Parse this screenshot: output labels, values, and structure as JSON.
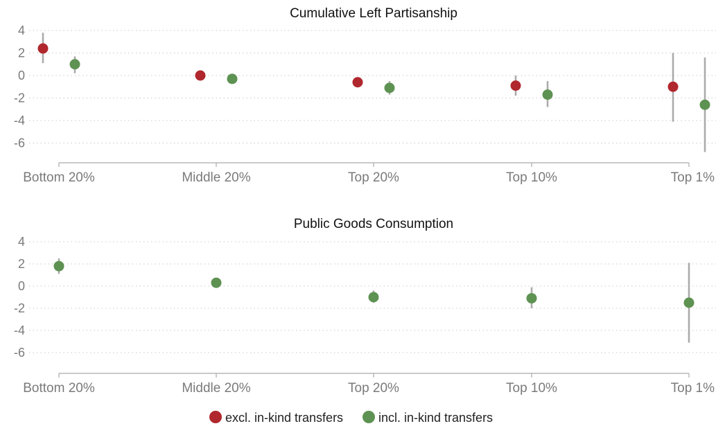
{
  "chart_data": [
    {
      "type": "scatter",
      "title": "Cumulative Left Partisanship",
      "categories": [
        "Bottom 20%",
        "Middle 20%",
        "Top 20%",
        "Top 10%",
        "Top 1%"
      ],
      "yticks": [
        4,
        2,
        0,
        -2,
        -4,
        -6
      ],
      "ylim": [
        -7.8,
        4.3
      ],
      "grid": true,
      "series": [
        {
          "name": "excl. in-kind transfers",
          "color": "#b0272d",
          "values": [
            2.4,
            0.0,
            -0.6,
            -0.9,
            -1.0
          ],
          "ci_low": [
            1.1,
            -0.1,
            -1.0,
            -1.8,
            -4.1
          ],
          "ci_high": [
            3.8,
            0.1,
            -0.2,
            0.0,
            2.0
          ]
        },
        {
          "name": "incl. in-kind transfers",
          "color": "#5e9252",
          "values": [
            1.0,
            -0.3,
            -1.1,
            -1.7,
            -2.6
          ],
          "ci_low": [
            0.2,
            -0.4,
            -1.7,
            -2.8,
            -6.8
          ],
          "ci_high": [
            1.7,
            -0.2,
            -0.5,
            -0.5,
            1.6
          ]
        }
      ]
    },
    {
      "type": "scatter",
      "title": "Public Goods Consumption",
      "categories": [
        "Bottom 20%",
        "Middle 20%",
        "Top 20%",
        "Top 10%",
        "Top 1%"
      ],
      "yticks": [
        4,
        2,
        0,
        -2,
        -4,
        -6
      ],
      "ylim": [
        -7.8,
        4.3
      ],
      "grid": true,
      "series": [
        {
          "name": "incl. in-kind transfers",
          "color": "#5e9252",
          "values": [
            1.8,
            0.3,
            -1.0,
            -1.1,
            -1.5
          ],
          "ci_low": [
            1.1,
            0.2,
            -1.5,
            -2.0,
            -5.1
          ],
          "ci_high": [
            2.5,
            0.4,
            -0.4,
            -0.1,
            2.1
          ]
        }
      ]
    }
  ],
  "legend": {
    "position": "bottom-center",
    "items": [
      {
        "label": "excl. in-kind transfers",
        "color": "#b0272d"
      },
      {
        "label": "incl. in-kind transfers",
        "color": "#5e9252"
      }
    ]
  }
}
